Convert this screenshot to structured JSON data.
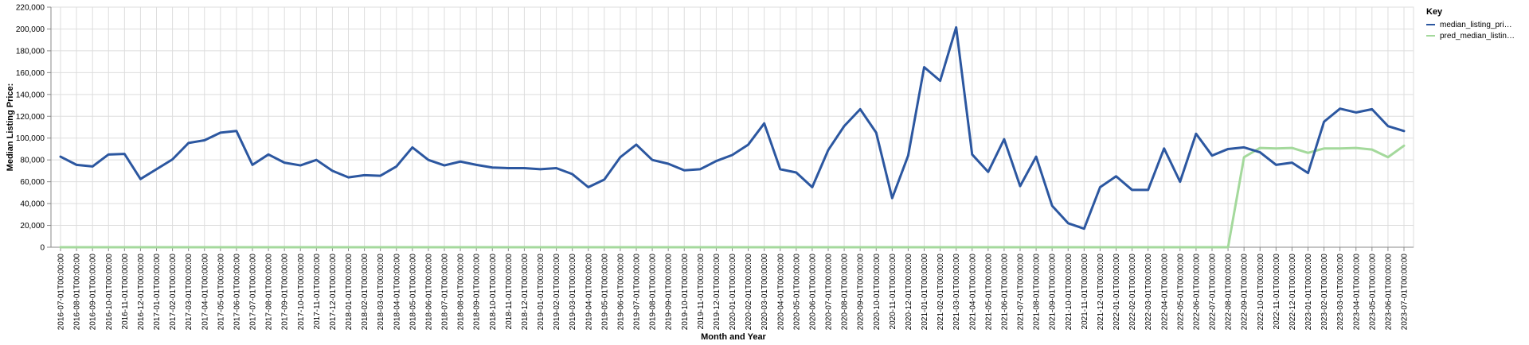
{
  "chart_data": {
    "type": "line",
    "title": "",
    "xlabel": "Month and Year",
    "ylabel": "Median Listing Price:",
    "ylim": [
      0,
      220000
    ],
    "y_ticks": [
      "0",
      "20,000",
      "40,000",
      "60,000",
      "80,000",
      "100,000",
      "120,000",
      "140,000",
      "160,000",
      "180,000",
      "200,000",
      "220,000"
    ],
    "y_tick_values": [
      0,
      20000,
      40000,
      60000,
      80000,
      100000,
      120000,
      140000,
      160000,
      180000,
      200000,
      220000
    ],
    "grid": true,
    "legend": {
      "title": "Key",
      "position": "top-right",
      "entries": [
        "median_listing_pri…",
        "pred_median_listin…"
      ]
    },
    "x": [
      "2016-07-01T00:00:00",
      "2016-08-01T00:00:00",
      "2016-09-01T00:00:00",
      "2016-10-01T00:00:00",
      "2016-11-01T00:00:00",
      "2016-12-01T00:00:00",
      "2017-01-01T00:00:00",
      "2017-02-01T00:00:00",
      "2017-03-01T00:00:00",
      "2017-04-01T00:00:00",
      "2017-05-01T00:00:00",
      "2017-06-01T00:00:00",
      "2017-07-01T00:00:00",
      "2017-08-01T00:00:00",
      "2017-09-01T00:00:00",
      "2017-10-01T00:00:00",
      "2017-11-01T00:00:00",
      "2017-12-01T00:00:00",
      "2018-01-01T00:00:00",
      "2018-02-01T00:00:00",
      "2018-03-01T00:00:00",
      "2018-04-01T00:00:00",
      "2018-05-01T00:00:00",
      "2018-06-01T00:00:00",
      "2018-07-01T00:00:00",
      "2018-08-01T00:00:00",
      "2018-09-01T00:00:00",
      "2018-10-01T00:00:00",
      "2018-11-01T00:00:00",
      "2018-12-01T00:00:00",
      "2019-01-01T00:00:00",
      "2019-02-01T00:00:00",
      "2019-03-01T00:00:00",
      "2019-04-01T00:00:00",
      "2019-05-01T00:00:00",
      "2019-06-01T00:00:00",
      "2019-07-01T00:00:00",
      "2019-08-01T00:00:00",
      "2019-09-01T00:00:00",
      "2019-10-01T00:00:00",
      "2019-11-01T00:00:00",
      "2019-12-01T00:00:00",
      "2020-01-01T00:00:00",
      "2020-02-01T00:00:00",
      "2020-03-01T00:00:00",
      "2020-04-01T00:00:00",
      "2020-05-01T00:00:00",
      "2020-06-01T00:00:00",
      "2020-07-01T00:00:00",
      "2020-08-01T00:00:00",
      "2020-09-01T00:00:00",
      "2020-10-01T00:00:00",
      "2020-11-01T00:00:00",
      "2020-12-01T00:00:00",
      "2021-01-01T00:00:00",
      "2021-02-01T00:00:00",
      "2021-03-01T00:00:00",
      "2021-04-01T00:00:00",
      "2021-05-01T00:00:00",
      "2021-06-01T00:00:00",
      "2021-07-01T00:00:00",
      "2021-08-01T00:00:00",
      "2021-09-01T00:00:00",
      "2021-10-01T00:00:00",
      "2021-11-01T00:00:00",
      "2021-12-01T00:00:00",
      "2022-01-01T00:00:00",
      "2022-02-01T00:00:00",
      "2022-03-01T00:00:00",
      "2022-04-01T00:00:00",
      "2022-05-01T00:00:00",
      "2022-06-01T00:00:00",
      "2022-07-01T00:00:00",
      "2022-08-01T00:00:00",
      "2022-09-01T00:00:00",
      "2022-10-01T00:00:00",
      "2022-11-01T00:00:00",
      "2022-12-01T00:00:00",
      "2023-01-01T00:00:00",
      "2023-02-01T00:00:00",
      "2023-03-01T00:00:00",
      "2023-04-01T00:00:00",
      "2023-05-01T00:00:00",
      "2023-06-01T00:00:00",
      "2023-07-01T00:00:00"
    ],
    "series": [
      {
        "name": "median_listing_pri…",
        "color": "#2c57a0",
        "values": [
          83000,
          75500,
          74000,
          85000,
          85500,
          62500,
          71500,
          80500,
          95500,
          98000,
          105000,
          106500,
          75500,
          85000,
          77500,
          75000,
          80000,
          70000,
          64000,
          66000,
          65500,
          74000,
          91500,
          80000,
          75000,
          78500,
          75500,
          73000,
          72500,
          72500,
          71500,
          72500,
          67000,
          55000,
          62000,
          82500,
          94000,
          80000,
          76500,
          70500,
          71500,
          79000,
          84500,
          94000,
          113500,
          71500,
          68500,
          55000,
          89000,
          111000,
          126500,
          105000,
          45000,
          84000,
          165000,
          152500,
          201500,
          85000,
          69000,
          99000,
          56000,
          83000,
          38000,
          22000,
          17000,
          55000,
          65000,
          52500,
          52500,
          90500,
          60000,
          104000,
          84000,
          90000,
          91500,
          87000,
          75500,
          77500,
          68000,
          115000,
          127000,
          123500,
          126500,
          111000,
          106500
        ]
      },
      {
        "name": "pred_median_listin…",
        "color": "#a4d99c",
        "values": [
          0,
          0,
          0,
          0,
          0,
          0,
          0,
          0,
          0,
          0,
          0,
          0,
          0,
          0,
          0,
          0,
          0,
          0,
          0,
          0,
          0,
          0,
          0,
          0,
          0,
          0,
          0,
          0,
          0,
          0,
          0,
          0,
          0,
          0,
          0,
          0,
          0,
          0,
          0,
          0,
          0,
          0,
          0,
          0,
          0,
          0,
          0,
          0,
          0,
          0,
          0,
          0,
          0,
          0,
          0,
          0,
          0,
          0,
          0,
          0,
          0,
          0,
          0,
          0,
          0,
          0,
          0,
          0,
          0,
          0,
          0,
          0,
          0,
          0,
          82500,
          91000,
          90500,
          91000,
          86500,
          90500,
          90500,
          91000,
          89500,
          82500,
          93000
        ]
      }
    ]
  }
}
